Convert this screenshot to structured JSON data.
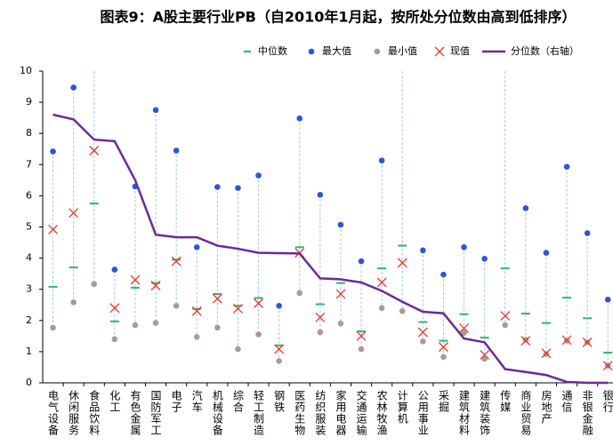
{
  "chart_data": {
    "type": "scatter",
    "title": "图表9：A股主要行业PB（自2010年1月起，按所处分位数由高到低排序）",
    "categories": [
      "电气设备",
      "休闲服务",
      "食品饮料",
      "化工",
      "有色金属",
      "国防军工",
      "电子",
      "汽车",
      "机械设备",
      "综合",
      "轻工制造",
      "钢铁",
      "医药生物",
      "纺织服装",
      "家用电器",
      "交通运输",
      "农林牧渔",
      "计算机",
      "公用事业",
      "采掘",
      "建筑材料",
      "建筑装饰",
      "传媒",
      "商业贸易",
      "房地产",
      "通信",
      "非银金融",
      "银行"
    ],
    "series": [
      {
        "name": "中位数",
        "color": "#2bb673",
        "marker": "dash",
        "values": [
          3.08,
          3.7,
          5.75,
          1.97,
          3.05,
          3.2,
          3.95,
          2.37,
          2.85,
          2.47,
          2.72,
          1.2,
          4.35,
          2.52,
          3.2,
          1.65,
          3.67,
          4.4,
          1.95,
          1.35,
          2.2,
          1.45,
          3.67,
          2.22,
          1.92,
          2.73,
          2.07,
          0.97
        ]
      },
      {
        "name": "最大值",
        "color": "#2f54d6",
        "marker": "dot",
        "values": [
          7.42,
          9.47,
          null,
          3.63,
          6.3,
          8.75,
          7.45,
          4.35,
          6.28,
          6.25,
          6.65,
          2.47,
          8.48,
          6.03,
          5.07,
          3.9,
          7.13,
          null,
          4.25,
          3.47,
          4.35,
          3.98,
          null,
          5.6,
          4.17,
          6.93,
          4.8,
          2.67
        ]
      },
      {
        "name": "最小值",
        "color": "#ab9b91",
        "marker": "dot",
        "values": [
          1.77,
          2.58,
          3.17,
          1.4,
          1.85,
          1.92,
          2.47,
          1.47,
          1.77,
          1.08,
          1.55,
          0.7,
          2.88,
          1.62,
          1.9,
          1.08,
          2.4,
          2.3,
          1.33,
          0.83,
          1.6,
          0.77,
          1.85,
          1.38,
          0.92,
          1.35,
          1.3,
          0.55
        ]
      },
      {
        "name": "现值",
        "color": "#e8392d",
        "marker": "x",
        "values": [
          4.92,
          5.45,
          7.45,
          2.4,
          3.3,
          3.12,
          3.9,
          2.3,
          2.7,
          2.38,
          2.55,
          1.08,
          4.17,
          2.1,
          2.85,
          1.5,
          3.22,
          3.85,
          1.62,
          1.15,
          1.75,
          0.9,
          2.15,
          1.35,
          0.95,
          1.37,
          1.3,
          0.55
        ]
      },
      {
        "name": "分位数（右轴）",
        "color": "#6a2c91",
        "marker": "line",
        "axis": "y2",
        "values": [
          86,
          84.5,
          78,
          77.5,
          65,
          47.5,
          46.7,
          46.7,
          44,
          43,
          41.7,
          41.6,
          41.5,
          33.5,
          33.2,
          32.2,
          29.5,
          26,
          22.8,
          22.3,
          14.2,
          13,
          4.4,
          3.5,
          2.5,
          0.3,
          0,
          0
        ]
      }
    ],
    "range_color": "#9fc9e8",
    "ylim": [
      0,
      10
    ],
    "yticks": [
      0,
      1,
      2,
      3,
      4,
      5,
      6,
      7,
      8,
      9,
      10
    ],
    "y2lim": [
      0,
      100
    ]
  }
}
